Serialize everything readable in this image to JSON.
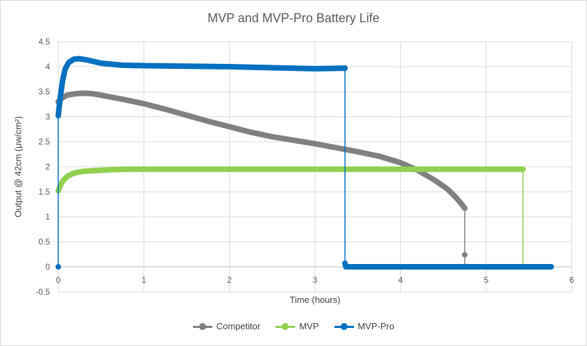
{
  "chart_data": {
    "type": "line",
    "title": "MVP and MVP-Pro Battery Life",
    "xlabel": "Time (hours)",
    "ylabel": "Output @ 42cm (μw/cm²)",
    "xlim": [
      0,
      6
    ],
    "ylim": [
      -0.5,
      4.5
    ],
    "x_ticks": [
      "0",
      "1",
      "2",
      "3",
      "4",
      "5",
      "6"
    ],
    "y_ticks": [
      "-0.5",
      "0",
      "0.5",
      "1",
      "1.5",
      "2",
      "2.5",
      "3",
      "3.5",
      "4",
      "4.5"
    ],
    "grid": true,
    "legend_position": "bottom",
    "series": [
      {
        "name": "Competitor",
        "color": "#808080",
        "points": [
          [
            0,
            3.3
          ],
          [
            0.05,
            3.38
          ],
          [
            0.1,
            3.43
          ],
          [
            0.2,
            3.46
          ],
          [
            0.3,
            3.47
          ],
          [
            0.4,
            3.46
          ],
          [
            0.5,
            3.43
          ],
          [
            0.75,
            3.35
          ],
          [
            1.0,
            3.26
          ],
          [
            1.25,
            3.15
          ],
          [
            1.5,
            3.03
          ],
          [
            1.75,
            2.91
          ],
          [
            2.0,
            2.8
          ],
          [
            2.25,
            2.69
          ],
          [
            2.5,
            2.6
          ],
          [
            2.75,
            2.53
          ],
          [
            3.0,
            2.46
          ],
          [
            3.25,
            2.38
          ],
          [
            3.5,
            2.3
          ],
          [
            3.75,
            2.21
          ],
          [
            4.0,
            2.08
          ],
          [
            4.2,
            1.93
          ],
          [
            4.4,
            1.73
          ],
          [
            4.55,
            1.55
          ],
          [
            4.65,
            1.38
          ],
          [
            4.7,
            1.28
          ],
          [
            4.75,
            1.17
          ],
          [
            4.75,
            0.24
          ],
          [
            4.75,
            0
          ]
        ]
      },
      {
        "name": "MVP",
        "color": "#92d050",
        "points": [
          [
            0,
            1.52
          ],
          [
            0.03,
            1.65
          ],
          [
            0.06,
            1.73
          ],
          [
            0.1,
            1.8
          ],
          [
            0.15,
            1.85
          ],
          [
            0.2,
            1.88
          ],
          [
            0.3,
            1.91
          ],
          [
            0.4,
            1.92
          ],
          [
            0.6,
            1.94
          ],
          [
            0.8,
            1.95
          ],
          [
            1.0,
            1.95
          ],
          [
            2.0,
            1.95
          ],
          [
            3.0,
            1.95
          ],
          [
            4.0,
            1.95
          ],
          [
            5.0,
            1.95
          ],
          [
            5.43,
            1.95
          ],
          [
            5.43,
            0
          ]
        ]
      },
      {
        "name": "MVP-Pro",
        "color": "#0070c0",
        "points": [
          [
            0,
            0
          ],
          [
            0,
            3.02
          ],
          [
            0.02,
            3.35
          ],
          [
            0.05,
            3.72
          ],
          [
            0.08,
            3.95
          ],
          [
            0.12,
            4.08
          ],
          [
            0.18,
            4.15
          ],
          [
            0.25,
            4.16
          ],
          [
            0.35,
            4.13
          ],
          [
            0.5,
            4.07
          ],
          [
            0.75,
            4.03
          ],
          [
            1.0,
            4.02
          ],
          [
            1.5,
            4.01
          ],
          [
            2.0,
            4.0
          ],
          [
            2.5,
            3.98
          ],
          [
            3.0,
            3.96
          ],
          [
            3.35,
            3.97
          ],
          [
            3.35,
            0.07
          ],
          [
            3.36,
            0
          ],
          [
            4.0,
            0
          ],
          [
            5.0,
            0
          ],
          [
            5.76,
            0
          ]
        ]
      }
    ]
  }
}
